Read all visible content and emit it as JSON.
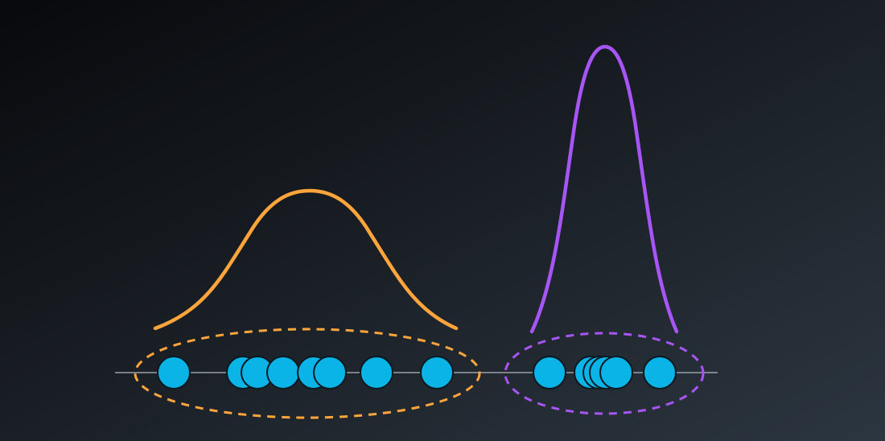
{
  "colors": {
    "background_start": "#08090c",
    "background_end": "#2c3640",
    "axis": "#9aa0a6",
    "left_cluster": "#ffa53b",
    "right_cluster": "#a855f7",
    "point_fill": "#0ab4e6",
    "point_stroke": "#0b1a22"
  },
  "clusters": [
    {
      "id": "left",
      "color_key": "left_cluster",
      "point_count": 8
    },
    {
      "id": "right",
      "color_key": "right_cluster",
      "point_count": 6
    }
  ]
}
